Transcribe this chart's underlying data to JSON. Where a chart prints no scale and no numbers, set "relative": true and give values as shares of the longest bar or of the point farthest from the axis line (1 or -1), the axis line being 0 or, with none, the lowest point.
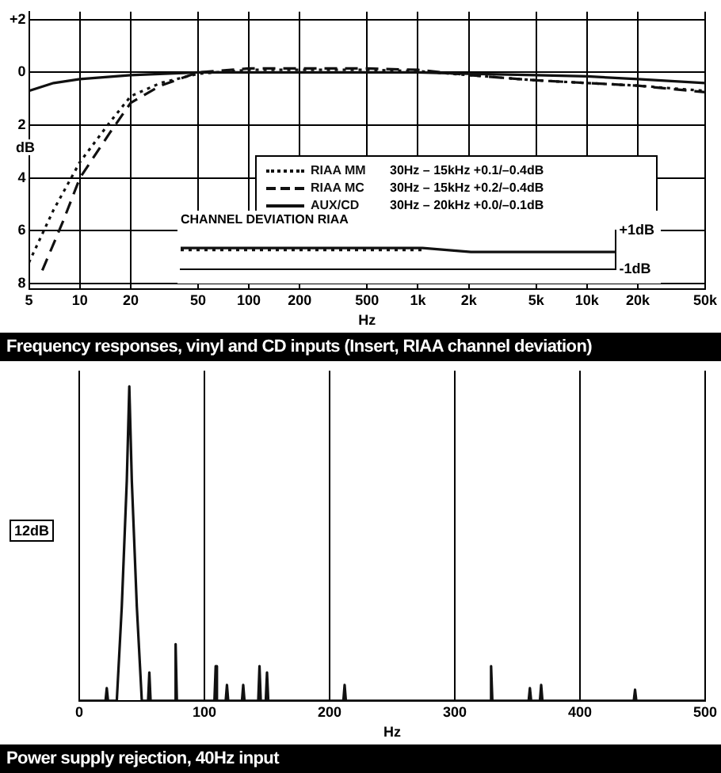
{
  "chart_data": [
    {
      "type": "line",
      "title": "Frequency responses, vinyl and CD inputs (Insert, RIAA channel deviation)",
      "xlabel": "Hz",
      "ylabel": "dB",
      "log": "x",
      "grid": true,
      "legend": "bottom left",
      "xlim": [
        5,
        50000
      ],
      "ylim": [
        -8.2,
        2.3
      ],
      "xticks": [
        5,
        10,
        20,
        50,
        100,
        200,
        500,
        {
          "value": 1000,
          "label": "1k"
        },
        {
          "value": 2000,
          "label": "2k"
        },
        {
          "value": 5000,
          "label": "5k"
        },
        {
          "value": 10000,
          "label": "10k"
        },
        {
          "value": 20000,
          "label": "20k"
        },
        {
          "value": 50000,
          "label": "50k"
        }
      ],
      "yticks": [
        {
          "value": 2,
          "label": "+2"
        },
        0,
        {
          "value": -2,
          "label": "2"
        },
        {
          "value": -4,
          "label": "4"
        },
        {
          "value": -6,
          "label": "6"
        },
        {
          "value": -8,
          "label": "8"
        }
      ],
      "annotations": [
        "30Hz – 15kHz +0.1/–0.4dB",
        "30Hz – 15kHz +0.2/–0.4dB",
        "30Hz – 20kHz +0.0/–0.1dB"
      ],
      "series": [
        {
          "name": "RIAA MM",
          "color": "#111111",
          "line_style": "dotted",
          "x": [
            5,
            7,
            10,
            15,
            20,
            30,
            50,
            100,
            200,
            500,
            1000,
            2000,
            5000,
            10000,
            20000,
            50000
          ],
          "values": [
            -7.2,
            -5.2,
            -3.4,
            -1.9,
            -0.9,
            -0.4,
            -0.05,
            0.1,
            0.1,
            0.1,
            0.05,
            -0.1,
            -0.3,
            -0.4,
            -0.5,
            -0.7
          ]
        },
        {
          "name": "RIAA MC",
          "color": "#111111",
          "line_style": "dashed",
          "x": [
            6,
            8,
            10,
            15,
            20,
            30,
            50,
            100,
            200,
            500,
            1000,
            2000,
            5000,
            10000,
            20000,
            50000
          ],
          "values": [
            -7.5,
            -5.6,
            -4,
            -2.3,
            -1.15,
            -0.5,
            0,
            0.15,
            0.15,
            0.15,
            0.1,
            -0.1,
            -0.3,
            -0.4,
            -0.5,
            -0.75
          ]
        },
        {
          "name": "AUX/CD",
          "color": "#111111",
          "line_style": "solid",
          "x": [
            5,
            7,
            10,
            20,
            50,
            100,
            200,
            500,
            1000,
            2000,
            5000,
            10000,
            20000,
            50000
          ],
          "values": [
            -0.7,
            -0.4,
            -0.25,
            -0.1,
            0,
            0,
            0,
            0,
            0,
            -0.05,
            -0.1,
            -0.15,
            -0.25,
            -0.4
          ]
        }
      ]
    },
    {
      "type": "line",
      "title": "CHANNEL DEVIATION RIAA",
      "categories": [
        null,
        null,
        null,
        null,
        null,
        null,
        null,
        null,
        null,
        null
      ],
      "ylim": [
        -1,
        1
      ],
      "yticks": [
        {
          "value": 1,
          "label": "+1dB"
        },
        {
          "value": -1,
          "label": "-1dB"
        }
      ],
      "series": [
        {
          "color": "#111111",
          "line_style": "dotted",
          "values": [
            0,
            0,
            0,
            0,
            0,
            0,
            null,
            null,
            null,
            null
          ]
        },
        {
          "color": "#111111",
          "line_style": "solid",
          "values": [
            0.1,
            0.1,
            0.1,
            0.1,
            0.1,
            0.1,
            -0.1,
            -0.1,
            -0.1,
            -0.1
          ]
        }
      ]
    },
    {
      "type": "line",
      "title": "Power supply rejection, 40Hz input",
      "xlabel": "Hz",
      "relative": true,
      "grid": "x",
      "xlim": [
        0,
        500
      ],
      "xticks": [
        0,
        100,
        200,
        300,
        400,
        500
      ],
      "annotations": [
        "12dB"
      ],
      "series": [
        {
          "color": "#111111",
          "line_style": "solid",
          "x": [
            0,
            21,
            22,
            23,
            30,
            34,
            38,
            40,
            42,
            46,
            50,
            55,
            56,
            57,
            76,
            77,
            78,
            108,
            109,
            110,
            117,
            118,
            119,
            130,
            131,
            132,
            143,
            144,
            145,
            149,
            150,
            151,
            211,
            212,
            213,
            328,
            329,
            330,
            359,
            360,
            361,
            368,
            369,
            370,
            443,
            444,
            445,
            500
          ],
          "values": [
            0,
            0,
            0.04,
            0,
            0,
            0.3,
            0.7,
            1,
            0.7,
            0.3,
            0,
            0,
            0.09,
            0,
            0,
            0.18,
            0,
            0,
            0.11,
            0,
            0,
            0.05,
            0,
            0,
            0.05,
            0,
            0,
            0.11,
            0,
            0,
            0.09,
            0,
            0,
            0.05,
            0,
            0,
            0.11,
            0,
            0,
            0.04,
            0,
            0,
            0.05,
            0,
            0,
            0.035,
            0,
            0
          ]
        }
      ]
    }
  ]
}
